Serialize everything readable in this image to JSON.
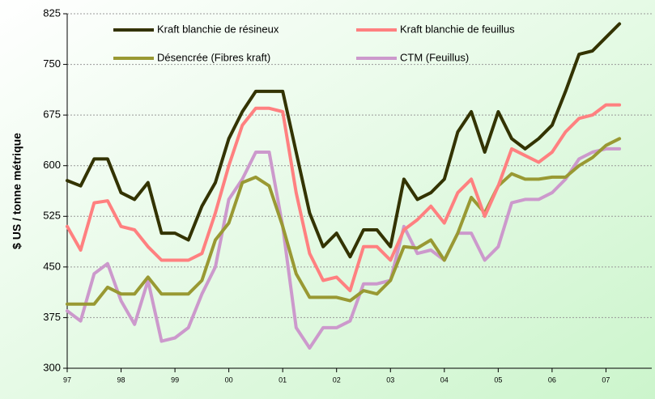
{
  "chart_data": {
    "type": "line",
    "ylabel": "$ US / tonne métrique",
    "x": [
      1997,
      1997.25,
      1997.5,
      1997.75,
      1998,
      1998.25,
      1998.5,
      1998.75,
      1999,
      1999.25,
      1999.5,
      1999.75,
      2000,
      2000.25,
      2000.5,
      2000.75,
      2001,
      2001.25,
      2001.5,
      2001.75,
      2002,
      2002.25,
      2002.5,
      2002.75,
      2003,
      2003.25,
      2003.5,
      2003.75,
      2004,
      2004.25,
      2004.5,
      2004.75,
      2005,
      2005.25,
      2005.5,
      2005.75,
      2006,
      2006.25,
      2006.5,
      2006.75,
      2007,
      2007.25
    ],
    "series": [
      {
        "name": "Kraft blanchie de résineux",
        "color": "#333300",
        "values": [
          578,
          570,
          610,
          610,
          560,
          550,
          575,
          500,
          500,
          490,
          540,
          575,
          640,
          680,
          710,
          710,
          710,
          620,
          530,
          480,
          500,
          465,
          505,
          505,
          480,
          580,
          550,
          560,
          580,
          650,
          680,
          620,
          680,
          640,
          625,
          640,
          660,
          710,
          765,
          770,
          790,
          810
        ]
      },
      {
        "name": "Kraft blanchie de feuillus",
        "color": "#ff8080",
        "values": [
          510,
          475,
          545,
          548,
          510,
          505,
          480,
          460,
          460,
          460,
          470,
          530,
          600,
          660,
          685,
          685,
          680,
          560,
          470,
          430,
          435,
          415,
          480,
          480,
          460,
          505,
          520,
          540,
          515,
          560,
          580,
          525,
          570,
          625,
          615,
          605,
          620,
          650,
          670,
          675,
          690,
          690
        ]
      },
      {
        "name": "Désencrée (Fibres kraft)",
        "color": "#999933",
        "values": [
          395,
          395,
          395,
          420,
          410,
          410,
          435,
          410,
          410,
          410,
          430,
          490,
          515,
          575,
          583,
          570,
          510,
          440,
          405,
          405,
          405,
          400,
          415,
          410,
          430,
          480,
          478,
          490,
          460,
          500,
          553,
          530,
          570,
          588,
          580,
          580,
          583,
          583,
          600,
          612,
          630,
          640
        ]
      },
      {
        "name": "CTM (Feuillus)",
        "color": "#cc99cc",
        "values": [
          385,
          370,
          440,
          455,
          400,
          365,
          430,
          340,
          345,
          360,
          410,
          450,
          550,
          580,
          620,
          620,
          510,
          360,
          330,
          360,
          360,
          370,
          425,
          425,
          430,
          510,
          470,
          475,
          460,
          500,
          500,
          460,
          480,
          545,
          550,
          550,
          560,
          580,
          610,
          620,
          625,
          625
        ]
      }
    ],
    "xlim": [
      1997,
      2007.85
    ],
    "xticks": [
      {
        "value": 1997,
        "label": "97"
      },
      {
        "value": 1998,
        "label": "98"
      },
      {
        "value": 1999,
        "label": "99"
      },
      {
        "value": 2000,
        "label": "00"
      },
      {
        "value": 2001,
        "label": "01"
      },
      {
        "value": 2002,
        "label": "02"
      },
      {
        "value": 2003,
        "label": "03"
      },
      {
        "value": 2004,
        "label": "04"
      },
      {
        "value": 2005,
        "label": "05"
      },
      {
        "value": 2006,
        "label": "06"
      },
      {
        "value": 2007,
        "label": "07"
      }
    ],
    "ylim": [
      300,
      825
    ],
    "yticks": [
      300,
      375,
      450,
      525,
      600,
      675,
      750,
      825
    ],
    "grid": true
  }
}
